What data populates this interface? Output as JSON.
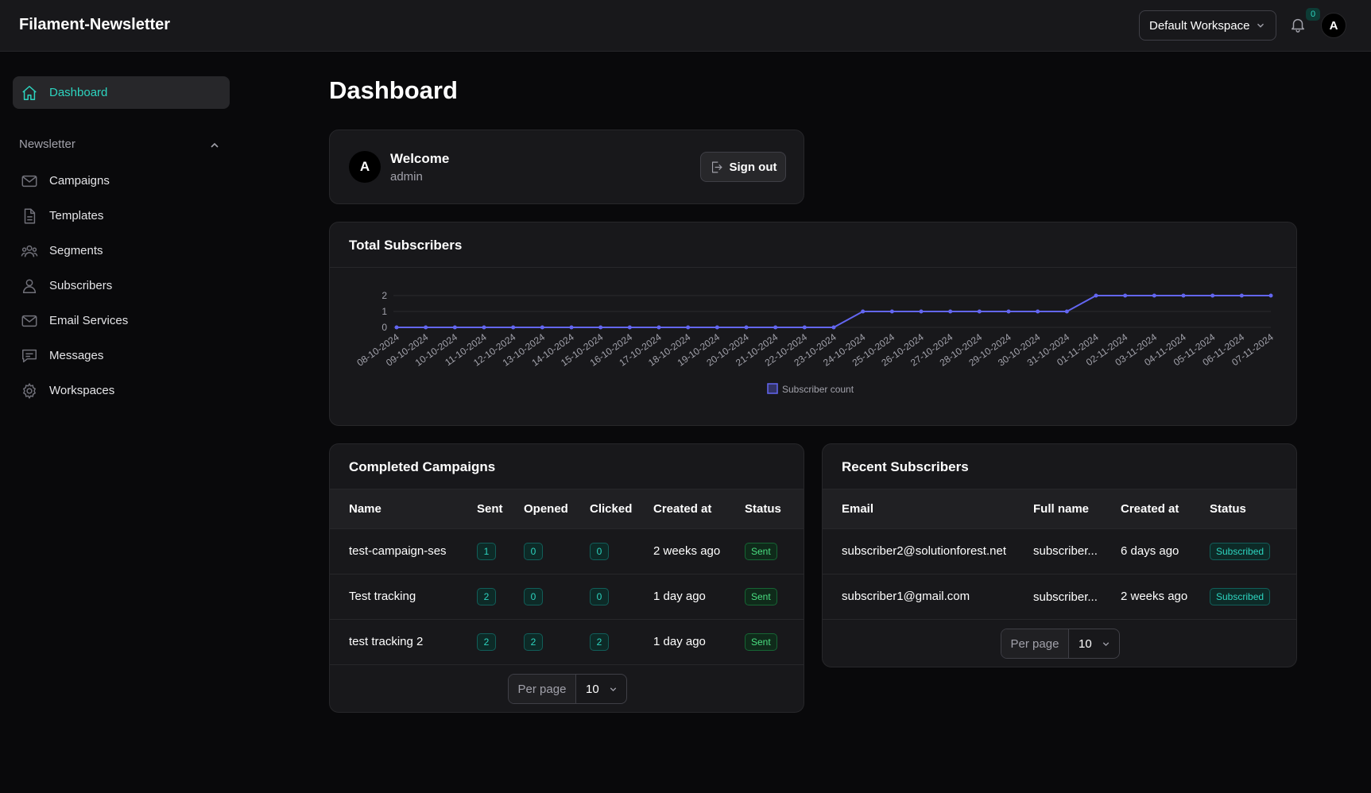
{
  "app": {
    "title": "Filament-Newsletter"
  },
  "header": {
    "workspace": "Default Workspace",
    "notifications_count": "0",
    "user_initial": "A"
  },
  "sidebar": {
    "dashboard": "Dashboard",
    "group_label": "Newsletter",
    "items": [
      {
        "label": "Campaigns",
        "icon": "envelope-icon"
      },
      {
        "label": "Templates",
        "icon": "document-icon"
      },
      {
        "label": "Segments",
        "icon": "user-group-icon"
      },
      {
        "label": "Subscribers",
        "icon": "user-icon"
      },
      {
        "label": "Email Services",
        "icon": "envelope-icon"
      },
      {
        "label": "Messages",
        "icon": "chat-icon"
      },
      {
        "label": "Workspaces",
        "icon": "cog-icon"
      }
    ]
  },
  "main": {
    "page_title": "Dashboard",
    "welcome": {
      "initial": "A",
      "title": "Welcome",
      "user": "admin",
      "signout_label": "Sign out"
    },
    "chart_title": "Total Subscribers",
    "campaigns": {
      "title": "Completed Campaigns",
      "columns": [
        "Name",
        "Sent",
        "Opened",
        "Clicked",
        "Created at",
        "Status"
      ],
      "rows": [
        {
          "name": "test-campaign-ses",
          "sent": "1",
          "opened": "0",
          "clicked": "0",
          "created": "2 weeks ago",
          "status": "Sent"
        },
        {
          "name": "Test tracking",
          "sent": "2",
          "opened": "0",
          "clicked": "0",
          "created": "1 day ago",
          "status": "Sent"
        },
        {
          "name": "test tracking 2",
          "sent": "2",
          "opened": "2",
          "clicked": "2",
          "created": "1 day ago",
          "status": "Sent"
        }
      ],
      "per_page_label": "Per page",
      "per_page_value": "10"
    },
    "subscribers": {
      "title": "Recent Subscribers",
      "columns": [
        "Email",
        "Full name",
        "Created at",
        "Status"
      ],
      "rows": [
        {
          "email": "subscriber2@solutionforest.net",
          "full_name": "subscriber...",
          "created": "6 days ago",
          "status": "Subscribed"
        },
        {
          "email": "subscriber1@gmail.com",
          "full_name": "subscriber...",
          "created": "2 weeks ago",
          "status": "Subscribed"
        }
      ],
      "per_page_label": "Per page",
      "per_page_value": "10"
    }
  },
  "colors": {
    "accent": "#2dd4bf",
    "series": "#6366f1"
  },
  "chart_data": {
    "type": "line",
    "title": "Total Subscribers",
    "xlabel": "",
    "ylabel": "",
    "ylim": [
      0,
      2
    ],
    "yticks": [
      "0",
      "1",
      "2"
    ],
    "grid": true,
    "legend": "bottom",
    "x": [
      "08-10-2024",
      "09-10-2024",
      "10-10-2024",
      "11-10-2024",
      "12-10-2024",
      "13-10-2024",
      "14-10-2024",
      "15-10-2024",
      "16-10-2024",
      "17-10-2024",
      "18-10-2024",
      "19-10-2024",
      "20-10-2024",
      "21-10-2024",
      "22-10-2024",
      "23-10-2024",
      "24-10-2024",
      "25-10-2024",
      "26-10-2024",
      "27-10-2024",
      "28-10-2024",
      "29-10-2024",
      "30-10-2024",
      "31-10-2024",
      "01-11-2024",
      "02-11-2024",
      "03-11-2024",
      "04-11-2024",
      "05-11-2024",
      "06-11-2024",
      "07-11-2024"
    ],
    "series": [
      {
        "name": "Subscriber count",
        "values": [
          0,
          0,
          0,
          0,
          0,
          0,
          0,
          0,
          0,
          0,
          0,
          0,
          0,
          0,
          0,
          0,
          1,
          1,
          1,
          1,
          1,
          1,
          1,
          1,
          2,
          2,
          2,
          2,
          2,
          2,
          2
        ]
      }
    ]
  }
}
